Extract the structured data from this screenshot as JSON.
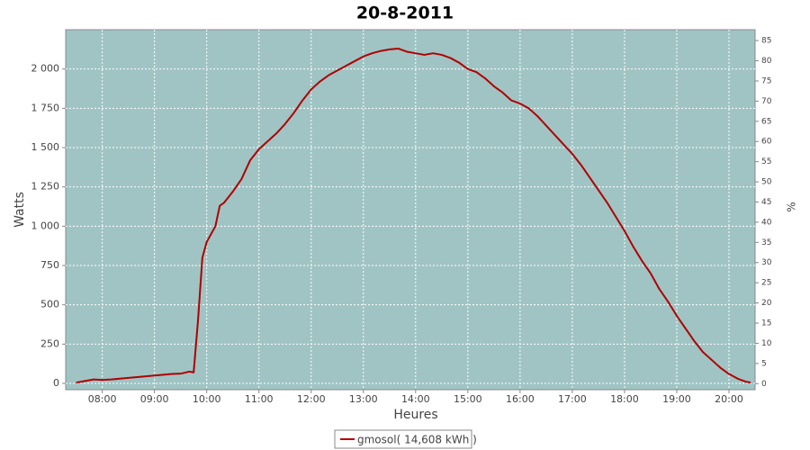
{
  "chart_data": {
    "type": "line",
    "title": "20-8-2011",
    "x_label": "Heures",
    "y_label": "Watts",
    "y2_label": "%",
    "x": [
      "07:30",
      "07:40",
      "07:50",
      "08:00",
      "08:10",
      "08:20",
      "08:30",
      "08:40",
      "08:50",
      "09:00",
      "09:10",
      "09:20",
      "09:30",
      "09:40",
      "09:45",
      "09:50",
      "09:55",
      "10:00",
      "10:10",
      "10:15",
      "10:20",
      "10:30",
      "10:40",
      "10:50",
      "11:00",
      "11:10",
      "11:20",
      "11:30",
      "11:40",
      "11:50",
      "12:00",
      "12:10",
      "12:20",
      "12:30",
      "12:40",
      "12:50",
      "13:00",
      "13:10",
      "13:20",
      "13:30",
      "13:40",
      "13:50",
      "14:00",
      "14:10",
      "14:20",
      "14:30",
      "14:40",
      "14:50",
      "15:00",
      "15:10",
      "15:20",
      "15:30",
      "15:40",
      "15:50",
      "16:00",
      "16:10",
      "16:20",
      "16:30",
      "16:40",
      "16:50",
      "17:00",
      "17:10",
      "17:20",
      "17:30",
      "17:40",
      "17:50",
      "18:00",
      "18:10",
      "18:20",
      "18:30",
      "18:40",
      "18:50",
      "19:00",
      "19:10",
      "19:20",
      "19:30",
      "19:40",
      "19:50",
      "20:00",
      "20:10",
      "20:20",
      "20:25"
    ],
    "series": [
      {
        "name": "gmosol( 14,608 kWh )",
        "color": "#b00000",
        "values": [
          5,
          15,
          25,
          22,
          25,
          30,
          35,
          40,
          45,
          50,
          55,
          60,
          62,
          75,
          70,
          400,
          800,
          900,
          1000,
          1130,
          1150,
          1220,
          1300,
          1420,
          1490,
          1540,
          1590,
          1650,
          1720,
          1800,
          1870,
          1920,
          1960,
          1990,
          2020,
          2050,
          2080,
          2100,
          2115,
          2125,
          2130,
          2110,
          2100,
          2090,
          2100,
          2090,
          2070,
          2040,
          2000,
          1980,
          1940,
          1890,
          1850,
          1800,
          1780,
          1750,
          1700,
          1640,
          1580,
          1520,
          1460,
          1390,
          1310,
          1230,
          1150,
          1060,
          970,
          870,
          780,
          700,
          600,
          520,
          430,
          350,
          270,
          200,
          150,
          100,
          60,
          30,
          10,
          5
        ]
      }
    ],
    "xlim": [
      "07:18",
      "20:30"
    ],
    "xticks": [
      "08:00",
      "09:00",
      "10:00",
      "11:00",
      "12:00",
      "13:00",
      "14:00",
      "15:00",
      "16:00",
      "17:00",
      "18:00",
      "19:00",
      "20:00"
    ],
    "ylim": [
      -40,
      2250
    ],
    "yticks": [
      0,
      250,
      500,
      750,
      {
        "value": 1000,
        "label": "1 000"
      },
      {
        "value": 1250,
        "label": "1 250"
      },
      {
        "value": 1500,
        "label": "1 500"
      },
      {
        "value": 1750,
        "label": "1 750"
      },
      {
        "value": 2000,
        "label": "2 000"
      }
    ],
    "y2lim": [
      -1.5,
      87.7
    ],
    "y2ticks": [
      0,
      5,
      10,
      15,
      20,
      25,
      30,
      35,
      40,
      45,
      50,
      55,
      60,
      65,
      70,
      75,
      80,
      85
    ],
    "grid": true,
    "background": "#a0c4c4",
    "legend": "bottom"
  }
}
